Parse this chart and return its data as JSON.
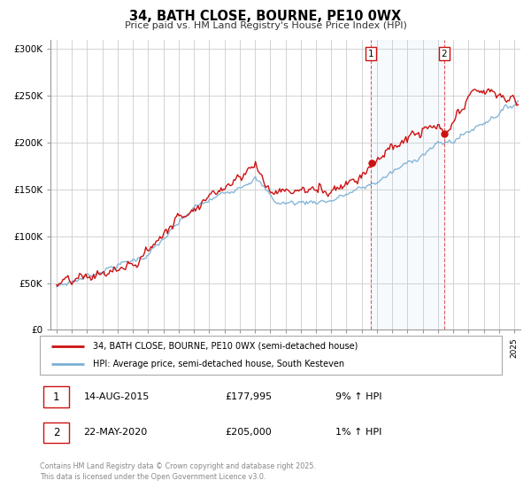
{
  "title": "34, BATH CLOSE, BOURNE, PE10 0WX",
  "subtitle": "Price paid vs. HM Land Registry's House Price Index (HPI)",
  "background_color": "#ffffff",
  "plot_bg_color": "#ffffff",
  "grid_color": "#cccccc",
  "line1_color": "#cc1111",
  "line2_color": "#7ab0d4",
  "vline_color": "#dd4444",
  "sale1_x": 2015.617,
  "sale1_y": 177995,
  "sale2_x": 2020.389,
  "sale2_y": 205000,
  "ylim": [
    0,
    310000
  ],
  "xlim": [
    1994.6,
    2025.4
  ],
  "legend1": "34, BATH CLOSE, BOURNE, PE10 0WX (semi-detached house)",
  "legend2": "HPI: Average price, semi-detached house, South Kesteven",
  "annot1_label": "1",
  "annot1_date": "14-AUG-2015",
  "annot1_price": "£177,995",
  "annot1_hpi": "9% ↑ HPI",
  "annot2_label": "2",
  "annot2_date": "22-MAY-2020",
  "annot2_price": "£205,000",
  "annot2_hpi": "1% ↑ HPI",
  "footer": "Contains HM Land Registry data © Crown copyright and database right 2025.\nThis data is licensed under the Open Government Licence v3.0.",
  "yticks": [
    0,
    50000,
    100000,
    150000,
    200000,
    250000,
    300000
  ],
  "ytick_labels": [
    "£0",
    "£50K",
    "£100K",
    "£150K",
    "£200K",
    "£250K",
    "£300K"
  ]
}
